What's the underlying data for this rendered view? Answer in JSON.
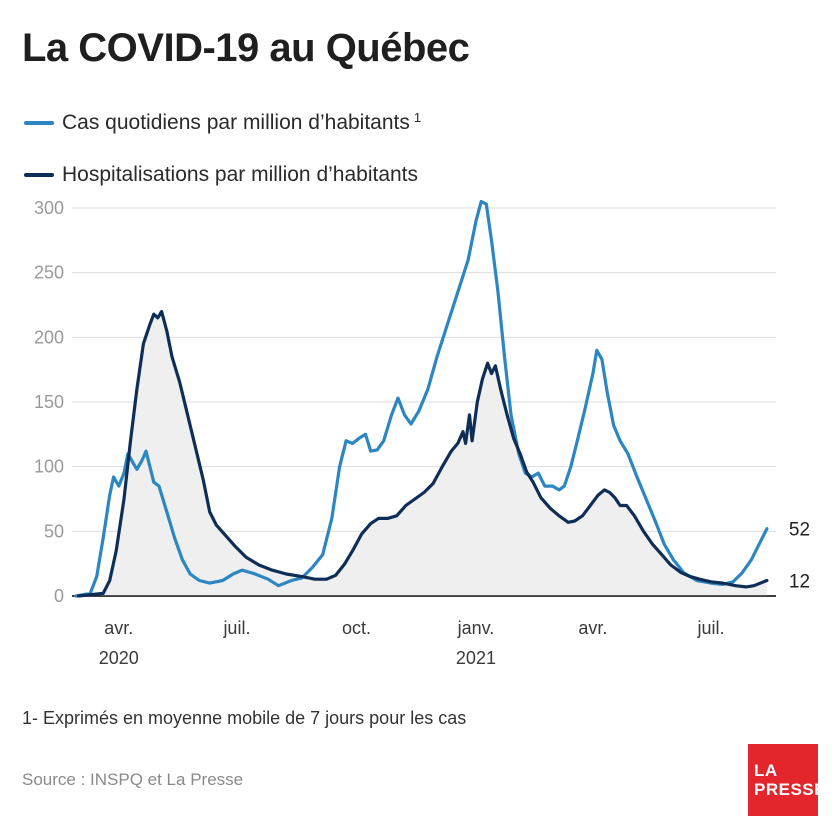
{
  "title": "La COVID-19 au Québec",
  "footnote": "1- Exprimés en moyenne mobile de 7 jours pour les cas",
  "source": "Source : INSPQ et La Presse",
  "logo": {
    "line1": "LA",
    "line2": "PRESSE",
    "color": "#e3262c"
  },
  "colors": {
    "cases": "#2b86c2",
    "hosp": "#0f2e57",
    "area": "#efefef",
    "grid": "#dddddd"
  },
  "chart_data": {
    "type": "line",
    "title": "La COVID-19 au Québec",
    "ylim": [
      0,
      300
    ],
    "yticks": [
      0,
      50,
      100,
      150,
      200,
      250,
      300
    ],
    "xlim": [
      "2020-02-25",
      "2021-08-20"
    ],
    "xticks": [
      {
        "date": "2020-04-01",
        "label": "avr.",
        "year": "2020"
      },
      {
        "date": "2020-07-01",
        "label": "juil.",
        "year": ""
      },
      {
        "date": "2020-10-01",
        "label": "oct.",
        "year": ""
      },
      {
        "date": "2021-01-01",
        "label": "janv.",
        "year": "2021"
      },
      {
        "date": "2021-04-01",
        "label": "avr.",
        "year": ""
      },
      {
        "date": "2021-07-01",
        "label": "juil.",
        "year": ""
      }
    ],
    "grid": true,
    "legend": "top-left",
    "series": [
      {
        "name": "Cas quotidiens par million d’habitants",
        "superscript": "1",
        "end_label": "52",
        "points": [
          [
            "2020-02-28",
            0
          ],
          [
            "2020-03-10",
            2
          ],
          [
            "2020-03-15",
            15
          ],
          [
            "2020-03-20",
            45
          ],
          [
            "2020-03-25",
            78
          ],
          [
            "2020-03-28",
            92
          ],
          [
            "2020-04-01",
            85
          ],
          [
            "2020-04-05",
            95
          ],
          [
            "2020-04-08",
            110
          ],
          [
            "2020-04-12",
            103
          ],
          [
            "2020-04-15",
            98
          ],
          [
            "2020-04-19",
            105
          ],
          [
            "2020-04-22",
            112
          ],
          [
            "2020-04-25",
            100
          ],
          [
            "2020-04-28",
            88
          ],
          [
            "2020-05-02",
            85
          ],
          [
            "2020-05-08",
            65
          ],
          [
            "2020-05-14",
            45
          ],
          [
            "2020-05-20",
            28
          ],
          [
            "2020-05-26",
            17
          ],
          [
            "2020-06-02",
            12
          ],
          [
            "2020-06-10",
            10
          ],
          [
            "2020-06-20",
            12
          ],
          [
            "2020-06-28",
            17
          ],
          [
            "2020-07-05",
            20
          ],
          [
            "2020-07-15",
            17
          ],
          [
            "2020-07-25",
            13
          ],
          [
            "2020-08-02",
            8
          ],
          [
            "2020-08-12",
            12
          ],
          [
            "2020-08-20",
            14
          ],
          [
            "2020-08-28",
            22
          ],
          [
            "2020-09-05",
            32
          ],
          [
            "2020-09-12",
            60
          ],
          [
            "2020-09-18",
            100
          ],
          [
            "2020-09-23",
            120
          ],
          [
            "2020-09-28",
            118
          ],
          [
            "2020-10-03",
            122
          ],
          [
            "2020-10-08",
            125
          ],
          [
            "2020-10-12",
            112
          ],
          [
            "2020-10-17",
            113
          ],
          [
            "2020-10-22",
            120
          ],
          [
            "2020-10-28",
            140
          ],
          [
            "2020-11-02",
            153
          ],
          [
            "2020-11-07",
            140
          ],
          [
            "2020-11-12",
            133
          ],
          [
            "2020-11-18",
            143
          ],
          [
            "2020-11-25",
            160
          ],
          [
            "2020-12-02",
            185
          ],
          [
            "2020-12-10",
            210
          ],
          [
            "2020-12-18",
            235
          ],
          [
            "2020-12-26",
            260
          ],
          [
            "2021-01-01",
            290
          ],
          [
            "2021-01-05",
            305
          ],
          [
            "2021-01-09",
            303
          ],
          [
            "2021-01-13",
            275
          ],
          [
            "2021-01-18",
            235
          ],
          [
            "2021-01-23",
            185
          ],
          [
            "2021-01-28",
            140
          ],
          [
            "2021-02-03",
            110
          ],
          [
            "2021-02-08",
            95
          ],
          [
            "2021-02-13",
            92
          ],
          [
            "2021-02-18",
            95
          ],
          [
            "2021-02-23",
            85
          ],
          [
            "2021-03-01",
            85
          ],
          [
            "2021-03-06",
            82
          ],
          [
            "2021-03-10",
            85
          ],
          [
            "2021-03-15",
            100
          ],
          [
            "2021-03-20",
            120
          ],
          [
            "2021-03-26",
            145
          ],
          [
            "2021-04-01",
            172
          ],
          [
            "2021-04-04",
            190
          ],
          [
            "2021-04-08",
            183
          ],
          [
            "2021-04-12",
            158
          ],
          [
            "2021-04-17",
            132
          ],
          [
            "2021-04-22",
            120
          ],
          [
            "2021-04-28",
            110
          ],
          [
            "2021-05-05",
            92
          ],
          [
            "2021-05-12",
            75
          ],
          [
            "2021-05-19",
            58
          ],
          [
            "2021-05-26",
            40
          ],
          [
            "2021-06-02",
            28
          ],
          [
            "2021-06-10",
            18
          ],
          [
            "2021-06-20",
            12
          ],
          [
            "2021-07-01",
            10
          ],
          [
            "2021-07-10",
            9
          ],
          [
            "2021-07-18",
            11
          ],
          [
            "2021-07-25",
            18
          ],
          [
            "2021-08-01",
            28
          ],
          [
            "2021-08-08",
            42
          ],
          [
            "2021-08-13",
            52
          ]
        ]
      },
      {
        "name": "Hospitalisations par million d’habitants",
        "end_label": "12",
        "points": [
          [
            "2020-03-01",
            0
          ],
          [
            "2020-03-20",
            2
          ],
          [
            "2020-03-25",
            12
          ],
          [
            "2020-03-30",
            35
          ],
          [
            "2020-04-05",
            75
          ],
          [
            "2020-04-10",
            120
          ],
          [
            "2020-04-15",
            160
          ],
          [
            "2020-04-20",
            195
          ],
          [
            "2020-04-25",
            210
          ],
          [
            "2020-04-28",
            218
          ],
          [
            "2020-05-01",
            215
          ],
          [
            "2020-05-04",
            220
          ],
          [
            "2020-05-08",
            205
          ],
          [
            "2020-05-12",
            185
          ],
          [
            "2020-05-18",
            165
          ],
          [
            "2020-05-24",
            140
          ],
          [
            "2020-05-30",
            115
          ],
          [
            "2020-06-05",
            90
          ],
          [
            "2020-06-10",
            65
          ],
          [
            "2020-06-15",
            55
          ],
          [
            "2020-06-22",
            47
          ],
          [
            "2020-06-30",
            38
          ],
          [
            "2020-07-08",
            30
          ],
          [
            "2020-07-18",
            24
          ],
          [
            "2020-07-28",
            20
          ],
          [
            "2020-08-08",
            17
          ],
          [
            "2020-08-20",
            15
          ],
          [
            "2020-08-30",
            13
          ],
          [
            "2020-09-08",
            13
          ],
          [
            "2020-09-15",
            16
          ],
          [
            "2020-09-22",
            25
          ],
          [
            "2020-09-28",
            35
          ],
          [
            "2020-10-05",
            48
          ],
          [
            "2020-10-12",
            56
          ],
          [
            "2020-10-18",
            60
          ],
          [
            "2020-10-25",
            60
          ],
          [
            "2020-11-01",
            62
          ],
          [
            "2020-11-08",
            70
          ],
          [
            "2020-11-15",
            75
          ],
          [
            "2020-11-22",
            80
          ],
          [
            "2020-11-29",
            87
          ],
          [
            "2020-12-06",
            100
          ],
          [
            "2020-12-13",
            112
          ],
          [
            "2020-12-18",
            118
          ],
          [
            "2020-12-22",
            127
          ],
          [
            "2020-12-24",
            118
          ],
          [
            "2020-12-27",
            140
          ],
          [
            "2020-12-29",
            120
          ],
          [
            "2021-01-02",
            150
          ],
          [
            "2021-01-06",
            168
          ],
          [
            "2021-01-10",
            180
          ],
          [
            "2021-01-13",
            172
          ],
          [
            "2021-01-16",
            178
          ],
          [
            "2021-01-20",
            160
          ],
          [
            "2021-01-25",
            140
          ],
          [
            "2021-01-30",
            122
          ],
          [
            "2021-02-04",
            110
          ],
          [
            "2021-02-09",
            96
          ],
          [
            "2021-02-14",
            88
          ],
          [
            "2021-02-20",
            76
          ],
          [
            "2021-02-27",
            68
          ],
          [
            "2021-03-06",
            62
          ],
          [
            "2021-03-13",
            57
          ],
          [
            "2021-03-18",
            58
          ],
          [
            "2021-03-24",
            62
          ],
          [
            "2021-03-30",
            70
          ],
          [
            "2021-04-05",
            78
          ],
          [
            "2021-04-10",
            82
          ],
          [
            "2021-04-14",
            80
          ],
          [
            "2021-04-18",
            76
          ],
          [
            "2021-04-22",
            70
          ],
          [
            "2021-04-27",
            70
          ],
          [
            "2021-05-03",
            62
          ],
          [
            "2021-05-10",
            50
          ],
          [
            "2021-05-17",
            40
          ],
          [
            "2021-05-24",
            32
          ],
          [
            "2021-05-31",
            24
          ],
          [
            "2021-06-08",
            18
          ],
          [
            "2021-06-15",
            15
          ],
          [
            "2021-06-22",
            13
          ],
          [
            "2021-07-01",
            11
          ],
          [
            "2021-07-10",
            10
          ],
          [
            "2021-07-20",
            8
          ],
          [
            "2021-07-28",
            7
          ],
          [
            "2021-08-03",
            8
          ],
          [
            "2021-08-08",
            10
          ],
          [
            "2021-08-13",
            12
          ]
        ]
      }
    ]
  }
}
